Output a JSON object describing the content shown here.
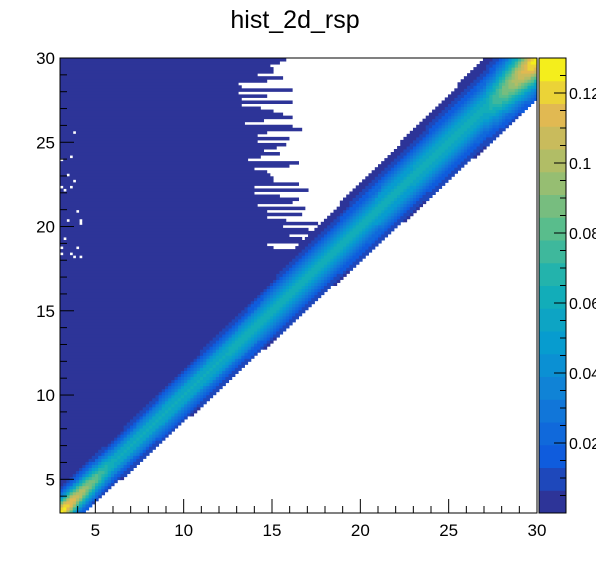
{
  "chart_data": {
    "type": "heatmap",
    "title": "hist_2d_rsp",
    "xlabel": "",
    "ylabel": "",
    "xlim": [
      3,
      30
    ],
    "ylim": [
      3,
      30
    ],
    "x_ticks": [
      5,
      10,
      15,
      20,
      25,
      30
    ],
    "y_ticks": [
      5,
      10,
      15,
      20,
      25,
      30
    ],
    "x_tick_labels": [
      "5",
      "10",
      "15",
      "20",
      "25",
      "30"
    ],
    "y_tick_labels": [
      "5",
      "10",
      "15",
      "20",
      "25",
      "30"
    ],
    "z_range": [
      0,
      0.13
    ],
    "z_ticks": [
      0.02,
      0.04,
      0.06,
      0.08,
      0.1,
      0.12
    ],
    "z_tick_labels": [
      "0.02",
      "0.04",
      "0.06",
      "0.08",
      "0.1",
      "0.12"
    ],
    "palette": "kBird",
    "grid": false,
    "colorbar": "right",
    "description_of_content": {
      "diagonal_peak": "response concentrated along y = x, peak ~0.06 mid-range rising to ~0.13 at x=3 and x=30",
      "lower_right_empty": "no entries below the band (white)",
      "upper_left_low": "low-level entries (~0.002) fill region above diagonal except a white empty wedge near x 12-22, y 18-30"
    }
  }
}
